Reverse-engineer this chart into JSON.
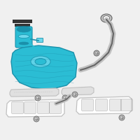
{
  "bg_color": "#f0f0f0",
  "tank_color": "#2bbdd4",
  "tank_color_dark": "#1a90aa",
  "tank_color_light": "#6dd8ec",
  "gray": "#999999",
  "dark_gray": "#333333",
  "light_gray": "#c0c0c0",
  "line_color": "#666666",
  "white": "#ffffff",
  "strap_color": "#e0e0e0"
}
